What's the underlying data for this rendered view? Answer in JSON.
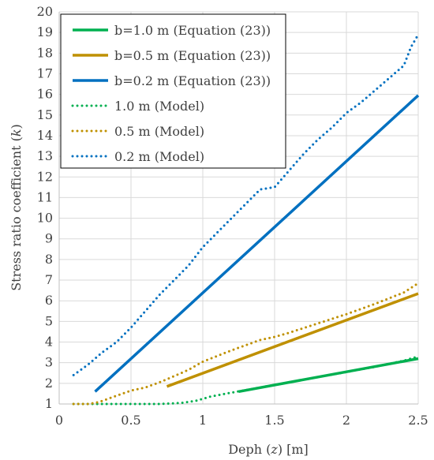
{
  "chart_data": {
    "type": "line",
    "xlabel": "Deph (z) [m]",
    "xlabel_parts": [
      "Deph (",
      "z",
      ") [m]"
    ],
    "ylabel": "Stress ratio coefficient (k)",
    "ylabel_parts": [
      "Stress ratio coefficient (",
      "k",
      ")"
    ],
    "xlim": [
      0,
      2.5
    ],
    "ylim": [
      1,
      20
    ],
    "xticks": [
      0,
      0.5,
      1,
      1.5,
      2,
      2.5
    ],
    "xtick_labels": [
      "0",
      "0.5",
      "1",
      "1.5",
      "2",
      "2.5"
    ],
    "yticks": [
      1,
      2,
      3,
      4,
      5,
      6,
      7,
      8,
      9,
      10,
      11,
      12,
      13,
      14,
      15,
      16,
      17,
      18,
      19,
      20
    ],
    "ytick_labels": [
      "1",
      "2",
      "3",
      "4",
      "5",
      "6",
      "7",
      "8",
      "9",
      "10",
      "11",
      "12",
      "13",
      "14",
      "15",
      "16",
      "17",
      "18",
      "19",
      "20"
    ],
    "legend_position": "top-left",
    "series": [
      {
        "name": "b=1.0 m (Equation (23))",
        "style": "solid",
        "color": "#00b050",
        "x": [
          1.25,
          2.5
        ],
        "y": [
          1.6,
          3.2
        ]
      },
      {
        "name": "b=0.5 m (Equation (23))",
        "style": "solid",
        "color": "#bf9000",
        "x": [
          0.75,
          2.5
        ],
        "y": [
          1.85,
          6.35
        ]
      },
      {
        "name": "b=0.2 m (Equation (23))",
        "style": "solid",
        "color": "#0070c0",
        "x": [
          0.25,
          2.5
        ],
        "y": [
          1.6,
          15.95
        ]
      },
      {
        "name": "1.0 m (Model)",
        "style": "dotted",
        "color": "#00b050",
        "x": [
          0.1,
          0.3,
          0.5,
          0.7,
          0.85,
          0.95,
          1.05,
          1.2,
          1.4,
          1.6,
          1.8,
          2.0,
          2.2,
          2.4,
          2.5
        ],
        "y": [
          1.0,
          1.0,
          1.0,
          1.0,
          1.05,
          1.15,
          1.35,
          1.55,
          1.8,
          2.05,
          2.3,
          2.55,
          2.8,
          3.1,
          3.3
        ]
      },
      {
        "name": "0.5 m (Model)",
        "style": "dotted",
        "color": "#bf9000",
        "x": [
          0.1,
          0.2,
          0.25,
          0.3,
          0.4,
          0.5,
          0.6,
          0.7,
          0.8,
          0.9,
          1.0,
          1.2,
          1.4,
          1.5,
          1.6,
          1.8,
          2.0,
          2.2,
          2.4,
          2.5
        ],
        "y": [
          1.0,
          1.0,
          1.05,
          1.15,
          1.4,
          1.65,
          1.8,
          2.05,
          2.35,
          2.65,
          3.05,
          3.6,
          4.1,
          4.25,
          4.45,
          4.9,
          5.35,
          5.85,
          6.4,
          6.85
        ]
      },
      {
        "name": "0.2 m (Model)",
        "style": "dotted",
        "color": "#0070c0",
        "x": [
          0.1,
          0.2,
          0.3,
          0.4,
          0.5,
          0.6,
          0.7,
          0.8,
          0.9,
          1.0,
          1.1,
          1.2,
          1.3,
          1.4,
          1.5,
          1.6,
          1.7,
          1.8,
          1.9,
          2.0,
          2.1,
          2.2,
          2.3,
          2.4,
          2.45,
          2.5
        ],
        "y": [
          2.4,
          2.9,
          3.5,
          4.0,
          4.7,
          5.5,
          6.3,
          7.0,
          7.7,
          8.6,
          9.3,
          10.0,
          10.7,
          11.4,
          11.5,
          12.3,
          13.1,
          13.8,
          14.4,
          15.1,
          15.6,
          16.2,
          16.8,
          17.4,
          18.3,
          18.9
        ]
      }
    ]
  }
}
